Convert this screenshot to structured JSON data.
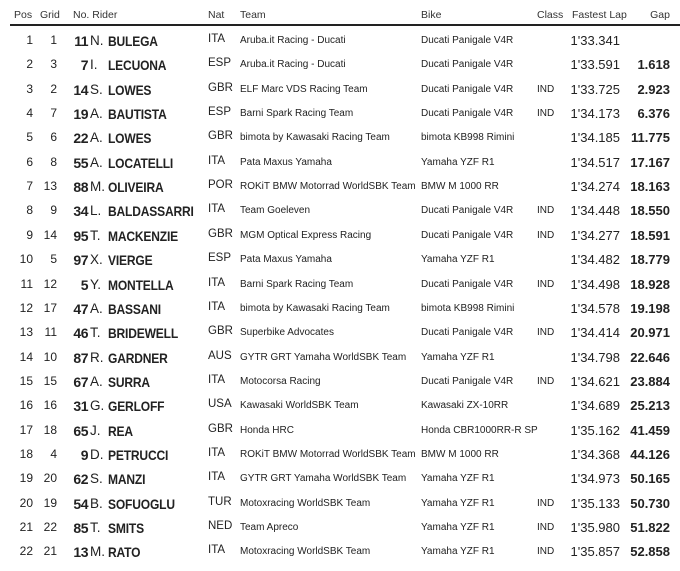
{
  "headers": {
    "pos": "Pos",
    "grid": "Grid",
    "rider": "No. Rider",
    "nat": "Nat",
    "team": "Team",
    "bike": "Bike",
    "class": "Class",
    "lap": "Fastest Lap",
    "gap": "Gap"
  },
  "rows": [
    {
      "pos": "1",
      "grid": "1",
      "num": "11",
      "ini": "N.",
      "sur": "BULEGA",
      "nat": "ITA",
      "team": "Aruba.it Racing - Ducati",
      "bike": "Ducati Panigale V4R",
      "cls": "",
      "lap": "1'33.341",
      "gap": ""
    },
    {
      "pos": "2",
      "grid": "3",
      "num": "7",
      "ini": "I.",
      "sur": "LECUONA",
      "nat": "ESP",
      "team": "Aruba.it Racing - Ducati",
      "bike": "Ducati Panigale V4R",
      "cls": "",
      "lap": "1'33.591",
      "gap": "1.618"
    },
    {
      "pos": "3",
      "grid": "2",
      "num": "14",
      "ini": "S.",
      "sur": "LOWES",
      "nat": "GBR",
      "team": "ELF Marc VDS Racing Team",
      "bike": "Ducati Panigale V4R",
      "cls": "IND",
      "lap": "1'33.725",
      "gap": "2.923"
    },
    {
      "pos": "4",
      "grid": "7",
      "num": "19",
      "ini": "A.",
      "sur": "BAUTISTA",
      "nat": "ESP",
      "team": "Barni Spark Racing Team",
      "bike": "Ducati Panigale V4R",
      "cls": "IND",
      "lap": "1'34.173",
      "gap": "6.376"
    },
    {
      "pos": "5",
      "grid": "6",
      "num": "22",
      "ini": "A.",
      "sur": "LOWES",
      "nat": "GBR",
      "team": "bimota by Kawasaki Racing Team",
      "bike": "bimota KB998 Rimini",
      "cls": "",
      "lap": "1'34.185",
      "gap": "11.775"
    },
    {
      "pos": "6",
      "grid": "8",
      "num": "55",
      "ini": "A.",
      "sur": "LOCATELLI",
      "nat": "ITA",
      "team": "Pata Maxus Yamaha",
      "bike": "Yamaha YZF R1",
      "cls": "",
      "lap": "1'34.517",
      "gap": "17.167"
    },
    {
      "pos": "7",
      "grid": "13",
      "num": "88",
      "ini": "M.",
      "sur": "OLIVEIRA",
      "nat": "POR",
      "team": "ROKiT BMW Motorrad WorldSBK Team",
      "bike": "BMW M 1000 RR",
      "cls": "",
      "lap": "1'34.274",
      "gap": "18.163"
    },
    {
      "pos": "8",
      "grid": "9",
      "num": "34",
      "ini": "L.",
      "sur": "BALDASSARRI",
      "nat": "ITA",
      "team": "Team Goeleven",
      "bike": "Ducati Panigale V4R",
      "cls": "IND",
      "lap": "1'34.448",
      "gap": "18.550"
    },
    {
      "pos": "9",
      "grid": "14",
      "num": "95",
      "ini": "T.",
      "sur": "MACKENZIE",
      "nat": "GBR",
      "team": "MGM Optical Express Racing",
      "bike": "Ducati Panigale V4R",
      "cls": "IND",
      "lap": "1'34.277",
      "gap": "18.591"
    },
    {
      "pos": "10",
      "grid": "5",
      "num": "97",
      "ini": "X.",
      "sur": "VIERGE",
      "nat": "ESP",
      "team": "Pata Maxus Yamaha",
      "bike": "Yamaha YZF R1",
      "cls": "",
      "lap": "1'34.482",
      "gap": "18.779"
    },
    {
      "pos": "11",
      "grid": "12",
      "num": "5",
      "ini": "Y.",
      "sur": "MONTELLA",
      "nat": "ITA",
      "team": "Barni Spark Racing Team",
      "bike": "Ducati Panigale V4R",
      "cls": "IND",
      "lap": "1'34.498",
      "gap": "18.928"
    },
    {
      "pos": "12",
      "grid": "17",
      "num": "47",
      "ini": "A.",
      "sur": "BASSANI",
      "nat": "ITA",
      "team": "bimota by Kawasaki Racing Team",
      "bike": "bimota KB998 Rimini",
      "cls": "",
      "lap": "1'34.578",
      "gap": "19.198"
    },
    {
      "pos": "13",
      "grid": "11",
      "num": "46",
      "ini": "T.",
      "sur": "BRIDEWELL",
      "nat": "GBR",
      "team": "Superbike Advocates",
      "bike": "Ducati Panigale V4R",
      "cls": "IND",
      "lap": "1'34.414",
      "gap": "20.971"
    },
    {
      "pos": "14",
      "grid": "10",
      "num": "87",
      "ini": "R.",
      "sur": "GARDNER",
      "nat": "AUS",
      "team": "GYTR GRT Yamaha WorldSBK Team",
      "bike": "Yamaha YZF R1",
      "cls": "",
      "lap": "1'34.798",
      "gap": "22.646"
    },
    {
      "pos": "15",
      "grid": "15",
      "num": "67",
      "ini": "A.",
      "sur": "SURRA",
      "nat": "ITA",
      "team": "Motocorsa Racing",
      "bike": "Ducati Panigale V4R",
      "cls": "IND",
      "lap": "1'34.621",
      "gap": "23.884"
    },
    {
      "pos": "16",
      "grid": "16",
      "num": "31",
      "ini": "G.",
      "sur": "GERLOFF",
      "nat": "USA",
      "team": "Kawasaki WorldSBK Team",
      "bike": "Kawasaki ZX-10RR",
      "cls": "",
      "lap": "1'34.689",
      "gap": "25.213"
    },
    {
      "pos": "17",
      "grid": "18",
      "num": "65",
      "ini": "J.",
      "sur": "REA",
      "nat": "GBR",
      "team": "Honda HRC",
      "bike": "Honda CBR1000RR-R SP",
      "cls": "",
      "lap": "1'35.162",
      "gap": "41.459"
    },
    {
      "pos": "18",
      "grid": "4",
      "num": "9",
      "ini": "D.",
      "sur": "PETRUCCI",
      "nat": "ITA",
      "team": "ROKiT BMW Motorrad WorldSBK Team",
      "bike": "BMW M 1000 RR",
      "cls": "",
      "lap": "1'34.368",
      "gap": "44.126"
    },
    {
      "pos": "19",
      "grid": "20",
      "num": "62",
      "ini": "S.",
      "sur": "MANZI",
      "nat": "ITA",
      "team": "GYTR GRT Yamaha WorldSBK Team",
      "bike": "Yamaha YZF R1",
      "cls": "",
      "lap": "1'34.973",
      "gap": "50.165"
    },
    {
      "pos": "20",
      "grid": "19",
      "num": "54",
      "ini": "B.",
      "sur": "SOFUOGLU",
      "nat": "TUR",
      "team": "Motoxracing WorldSBK Team",
      "bike": "Yamaha YZF R1",
      "cls": "IND",
      "lap": "1'35.133",
      "gap": "50.730"
    },
    {
      "pos": "21",
      "grid": "22",
      "num": "85",
      "ini": "T.",
      "sur": "SMITS",
      "nat": "NED",
      "team": "Team Apreco",
      "bike": "Yamaha YZF R1",
      "cls": "IND",
      "lap": "1'35.980",
      "gap": "51.822"
    },
    {
      "pos": "22",
      "grid": "21",
      "num": "13",
      "ini": "M.",
      "sur": "RATO",
      "nat": "ITA",
      "team": "Motoxracing WorldSBK Team",
      "bike": "Yamaha YZF R1",
      "cls": "IND",
      "lap": "1'35.857",
      "gap": "52.858"
    }
  ]
}
